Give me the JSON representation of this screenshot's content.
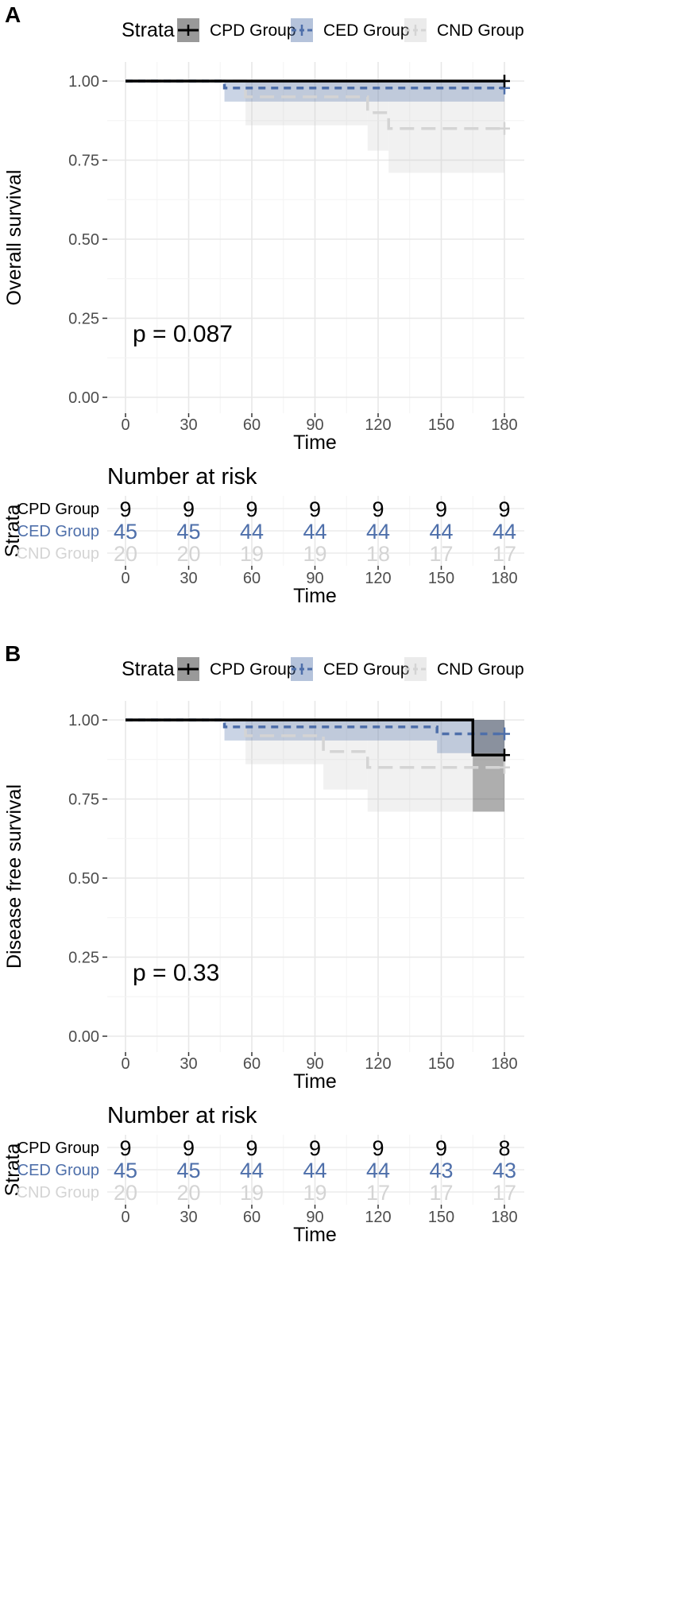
{
  "colors": {
    "CPD": "#000000",
    "CED": "#4e6faa",
    "CND": "#d4d4d4"
  },
  "chart_data": [
    {
      "panel": "A",
      "type": "line",
      "subtype": "kaplan-meier",
      "legend_title": "Strata",
      "ylabel": "Overall survival",
      "xlabel": "Time",
      "xlim": [
        0,
        180
      ],
      "ylim": [
        0,
        1
      ],
      "xticks": [
        "0",
        "30",
        "60",
        "90",
        "120",
        "150",
        "180"
      ],
      "yticks": [
        "0.00",
        "0.25",
        "0.50",
        "0.75",
        "1.00"
      ],
      "pvalue": "p = 0.087",
      "series": [
        {
          "name": "CPD Group",
          "key": "CPD",
          "steps": [
            [
              0,
              1.0
            ],
            [
              180,
              1.0
            ]
          ],
          "ci": [
            [
              0,
              1.0,
              1.0
            ],
            [
              180,
              1.0,
              1.0
            ]
          ]
        },
        {
          "name": "CED Group",
          "key": "CED",
          "steps": [
            [
              0,
              1.0
            ],
            [
              47,
              0.978
            ],
            [
              180,
              0.978
            ]
          ],
          "ci": [
            [
              0,
              1.0,
              1.0
            ],
            [
              47,
              0.935,
              1.0
            ],
            [
              180,
              0.935,
              1.0
            ]
          ]
        },
        {
          "name": "CND Group",
          "key": "CND",
          "steps": [
            [
              0,
              1.0
            ],
            [
              57,
              0.95
            ],
            [
              115,
              0.9
            ],
            [
              125,
              0.85
            ],
            [
              180,
              0.85
            ]
          ],
          "ci": [
            [
              0,
              1.0,
              1.0
            ],
            [
              57,
              0.86,
              1.0
            ],
            [
              115,
              0.78,
              1.0
            ],
            [
              125,
              0.71,
              1.0
            ],
            [
              180,
              0.71,
              1.0
            ]
          ]
        }
      ],
      "risk_table": {
        "title": "Number at risk",
        "ylabel": "Strata",
        "xlabel": "Time",
        "times": [
          0,
          30,
          60,
          90,
          120,
          150,
          180
        ],
        "rows": [
          {
            "name": "CPD Group",
            "key": "CPD",
            "counts": [
              9,
              9,
              9,
              9,
              9,
              9,
              9
            ]
          },
          {
            "name": "CED Group",
            "key": "CED",
            "counts": [
              45,
              45,
              44,
              44,
              44,
              44,
              44
            ]
          },
          {
            "name": "CND Group",
            "key": "CND",
            "counts": [
              20,
              20,
              19,
              19,
              18,
              17,
              17
            ]
          }
        ]
      }
    },
    {
      "panel": "B",
      "type": "line",
      "subtype": "kaplan-meier",
      "legend_title": "Strata",
      "ylabel": "Disease free survival",
      "xlabel": "Time",
      "xlim": [
        0,
        180
      ],
      "ylim": [
        0,
        1
      ],
      "xticks": [
        "0",
        "30",
        "60",
        "90",
        "120",
        "150",
        "180"
      ],
      "yticks": [
        "0.00",
        "0.25",
        "0.50",
        "0.75",
        "1.00"
      ],
      "pvalue": "p = 0.33",
      "series": [
        {
          "name": "CPD Group",
          "key": "CPD",
          "steps": [
            [
              0,
              1.0
            ],
            [
              165,
              0.889
            ],
            [
              180,
              0.889
            ]
          ],
          "ci": [
            [
              0,
              1.0,
              1.0
            ],
            [
              165,
              0.71,
              1.0
            ],
            [
              180,
              0.71,
              1.0
            ]
          ]
        },
        {
          "name": "CED Group",
          "key": "CED",
          "steps": [
            [
              0,
              1.0
            ],
            [
              47,
              0.978
            ],
            [
              148,
              0.956
            ],
            [
              180,
              0.956
            ]
          ],
          "ci": [
            [
              0,
              1.0,
              1.0
            ],
            [
              47,
              0.935,
              1.0
            ],
            [
              148,
              0.895,
              1.0
            ],
            [
              180,
              0.895,
              1.0
            ]
          ]
        },
        {
          "name": "CND Group",
          "key": "CND",
          "steps": [
            [
              0,
              1.0
            ],
            [
              57,
              0.95
            ],
            [
              94,
              0.9
            ],
            [
              115,
              0.85
            ],
            [
              180,
              0.85
            ]
          ],
          "ci": [
            [
              0,
              1.0,
              1.0
            ],
            [
              57,
              0.86,
              1.0
            ],
            [
              94,
              0.78,
              1.0
            ],
            [
              115,
              0.71,
              1.0
            ],
            [
              180,
              0.71,
              1.0
            ]
          ]
        }
      ],
      "risk_table": {
        "title": "Number at risk",
        "ylabel": "Strata",
        "xlabel": "Time",
        "times": [
          0,
          30,
          60,
          90,
          120,
          150,
          180
        ],
        "rows": [
          {
            "name": "CPD Group",
            "key": "CPD",
            "counts": [
              9,
              9,
              9,
              9,
              9,
              9,
              8
            ]
          },
          {
            "name": "CED Group",
            "key": "CED",
            "counts": [
              45,
              45,
              44,
              44,
              44,
              43,
              43
            ]
          },
          {
            "name": "CND Group",
            "key": "CND",
            "counts": [
              20,
              20,
              19,
              19,
              17,
              17,
              17
            ]
          }
        ]
      }
    }
  ]
}
